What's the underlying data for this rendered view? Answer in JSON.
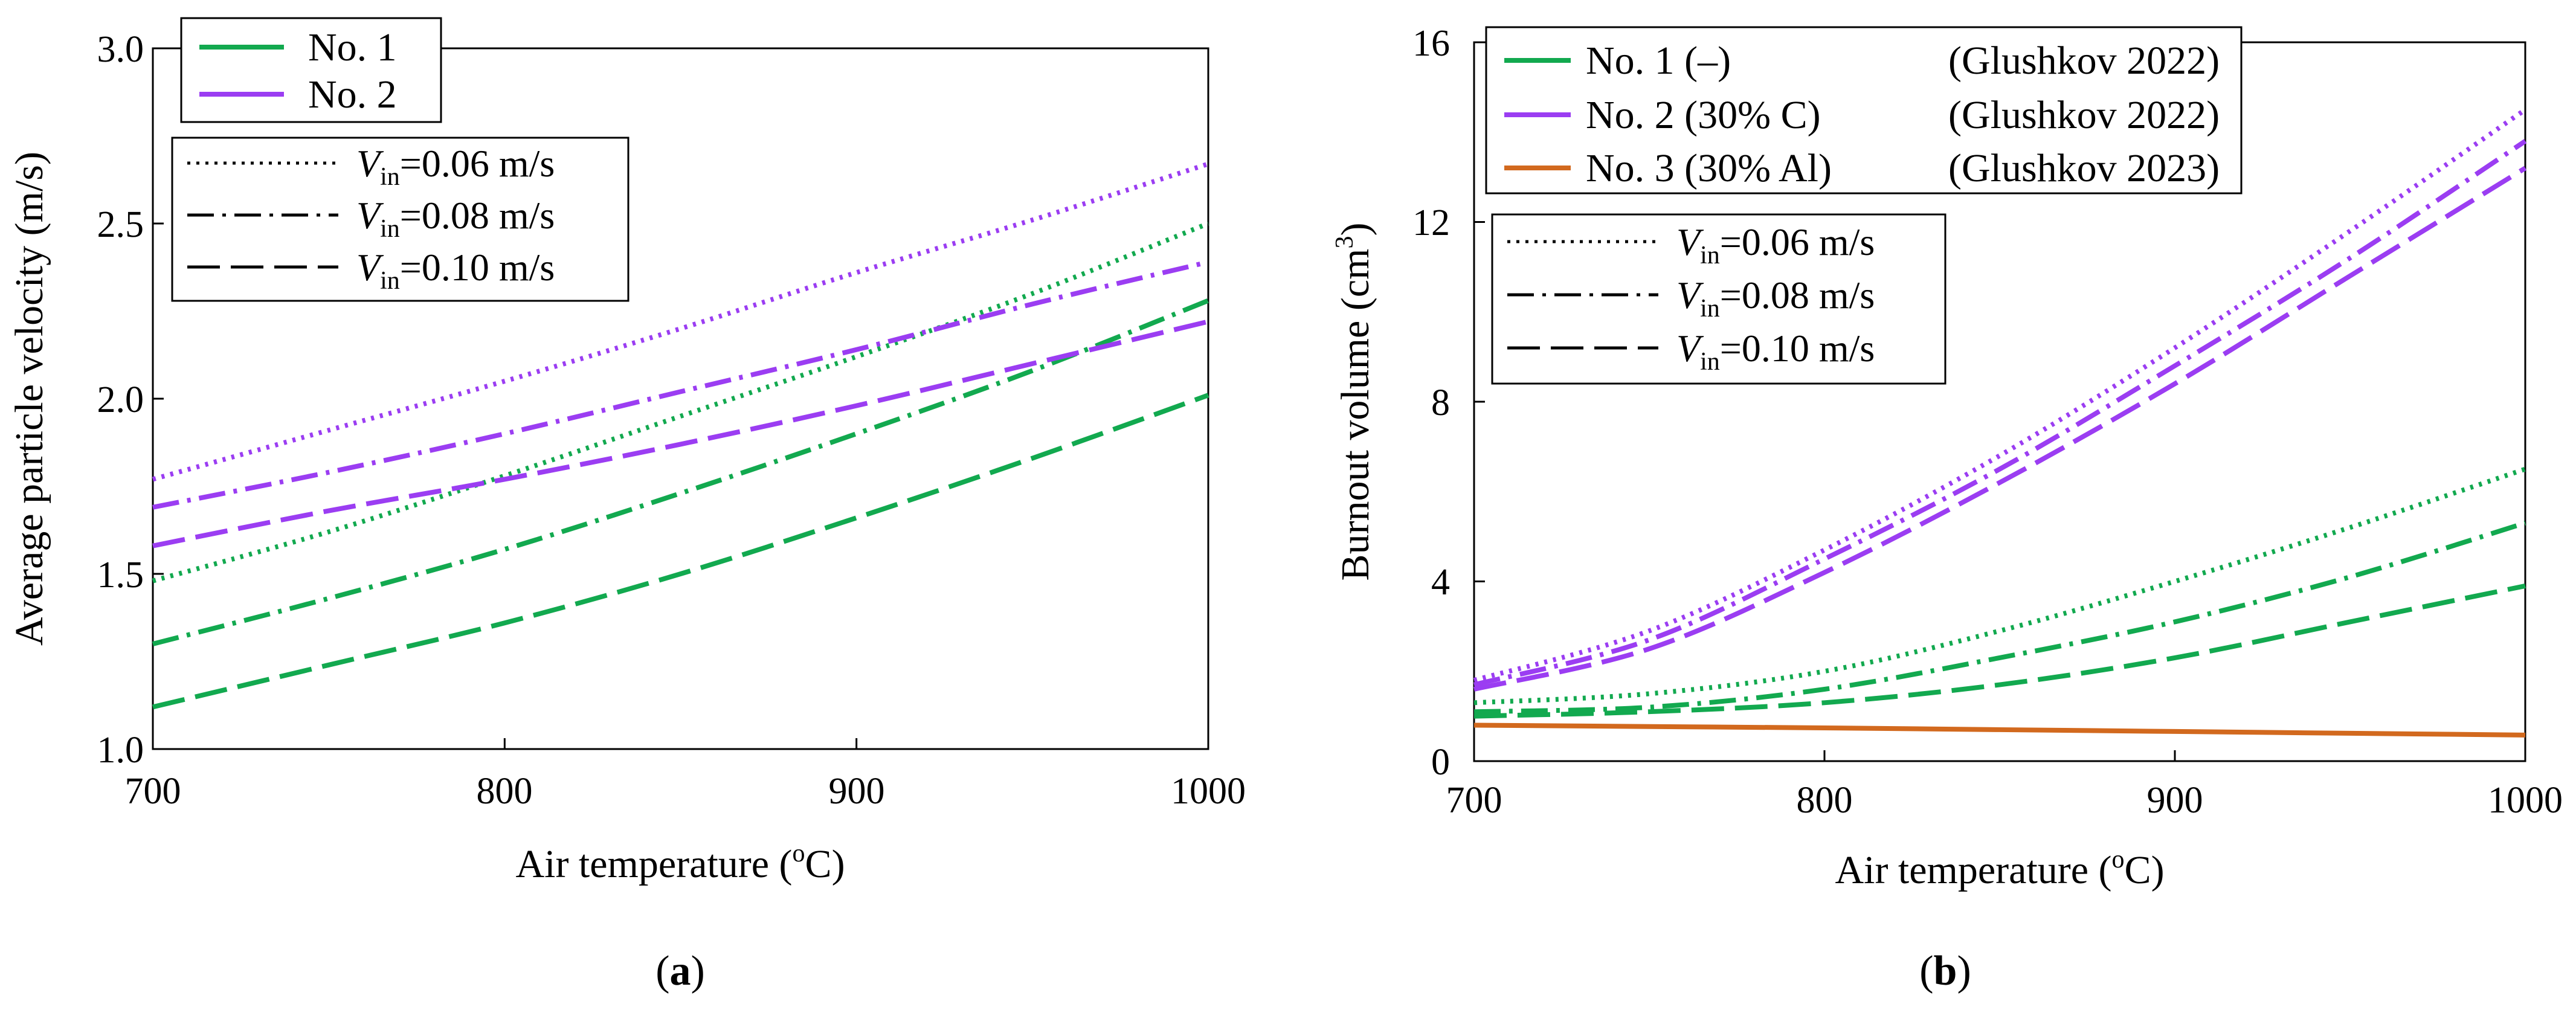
{
  "colors": {
    "green": "#12a94f",
    "purple": "#9b3df2",
    "orange": "#d2691e"
  },
  "chart_data": [
    {
      "type": "line",
      "panel_label": "a",
      "xlabel": "Air temperature (",
      "xlabel_sup": "o",
      "xlabel_end": "C)",
      "ylabel": "Average particle velocity (m/s)",
      "xlim": [
        700,
        1000
      ],
      "ylim": [
        1.0,
        3.0
      ],
      "xticks": [
        "700",
        "800",
        "900",
        "1000"
      ],
      "yticks": [
        "1.0",
        "1.5",
        "2.0",
        "2.5",
        "3.0"
      ],
      "x": [
        700,
        750,
        800,
        850,
        900,
        950,
        1000
      ],
      "fuel_legend": [
        {
          "label": "No. 1",
          "ref": "",
          "color": "green"
        },
        {
          "label": "No. 2",
          "ref": "",
          "color": "purple"
        }
      ],
      "style_legend": [
        {
          "label_pre": "V",
          "label_sub": "in",
          "label_post": "=0.06 m/s",
          "dash": "dot"
        },
        {
          "label_pre": "V",
          "label_sub": "in",
          "label_post": "=0.08 m/s",
          "dash": "dashdot"
        },
        {
          "label_pre": "V",
          "label_sub": "in",
          "label_post": "=0.10 m/s",
          "dash": "dash"
        }
      ],
      "series": [
        {
          "name": "No. 1, Vin=0.06 m/s",
          "color": "green",
          "dash": "dot",
          "values": [
            1.48,
            1.62,
            1.78,
            1.95,
            2.12,
            2.3,
            2.5
          ]
        },
        {
          "name": "No. 1, Vin=0.08 m/s",
          "color": "green",
          "dash": "dashdot",
          "values": [
            1.3,
            1.43,
            1.57,
            1.73,
            1.9,
            2.08,
            2.28
          ]
        },
        {
          "name": "No. 1, Vin=0.10 m/s",
          "color": "green",
          "dash": "dash",
          "values": [
            1.12,
            1.24,
            1.36,
            1.5,
            1.66,
            1.83,
            2.01
          ]
        },
        {
          "name": "No. 2, Vin=0.06 m/s",
          "color": "purple",
          "dash": "dot",
          "values": [
            1.77,
            1.91,
            2.05,
            2.2,
            2.36,
            2.51,
            2.67
          ]
        },
        {
          "name": "No. 2, Vin=0.08 m/s",
          "color": "purple",
          "dash": "dashdot",
          "values": [
            1.69,
            1.79,
            1.9,
            2.02,
            2.14,
            2.27,
            2.39
          ]
        },
        {
          "name": "No. 2, Vin=0.10 m/s",
          "color": "purple",
          "dash": "dash",
          "values": [
            1.58,
            1.68,
            1.77,
            1.87,
            1.98,
            2.1,
            2.22
          ]
        }
      ]
    },
    {
      "type": "line",
      "panel_label": "b",
      "xlabel": "Air temperature (",
      "xlabel_sup": "o",
      "xlabel_end": "C)",
      "ylabel": "Burnout volume (cm",
      "ylabel_sup": "3",
      "ylabel_end": ")",
      "xlim": [
        700,
        1000
      ],
      "ylim": [
        0,
        16
      ],
      "xticks": [
        "700",
        "800",
        "900",
        "1000"
      ],
      "yticks": [
        "0",
        "4",
        "8",
        "12",
        "16"
      ],
      "x": [
        700,
        750,
        800,
        850,
        900,
        950,
        1000
      ],
      "fuel_legend": [
        {
          "label": "No. 1 (–)",
          "ref": "(Glushkov 2022)",
          "color": "green"
        },
        {
          "label": "No. 2 (30% C)",
          "ref": "(Glushkov 2022)",
          "color": "purple"
        },
        {
          "label": "No. 3 (30% Al)",
          "ref": "(Glushkov 2023)",
          "color": "orange"
        }
      ],
      "style_legend": [
        {
          "label_pre": "V",
          "label_sub": "in",
          "label_post": "=0.06 m/s",
          "dash": "dot"
        },
        {
          "label_pre": "V",
          "label_sub": "in",
          "label_post": "=0.08 m/s",
          "dash": "dashdot"
        },
        {
          "label_pre": "V",
          "label_sub": "in",
          "label_post": "=0.10 m/s",
          "dash": "dash"
        }
      ],
      "series": [
        {
          "name": "No. 1, Vin=0.06 m/s",
          "color": "green",
          "dash": "dot",
          "values": [
            1.3,
            1.5,
            2.0,
            2.9,
            4.0,
            5.2,
            6.5
          ]
        },
        {
          "name": "No. 1, Vin=0.08 m/s",
          "color": "green",
          "dash": "dashdot",
          "values": [
            1.1,
            1.2,
            1.6,
            2.3,
            3.1,
            4.1,
            5.3
          ]
        },
        {
          "name": "No. 1, Vin=0.10 m/s",
          "color": "green",
          "dash": "dash",
          "values": [
            1.0,
            1.1,
            1.3,
            1.7,
            2.3,
            3.1,
            3.9
          ]
        },
        {
          "name": "No. 2, Vin=0.06 m/s",
          "color": "purple",
          "dash": "dot",
          "values": [
            1.8,
            2.9,
            4.7,
            6.8,
            9.2,
            11.8,
            14.5
          ]
        },
        {
          "name": "No. 2, Vin=0.08 m/s",
          "color": "purple",
          "dash": "dashdot",
          "values": [
            1.7,
            2.7,
            4.5,
            6.5,
            8.8,
            11.2,
            13.8
          ]
        },
        {
          "name": "No. 2, Vin=0.10 m/s",
          "color": "purple",
          "dash": "dash",
          "values": [
            1.6,
            2.5,
            4.2,
            6.2,
            8.4,
            10.8,
            13.2
          ]
        },
        {
          "name": "No. 3",
          "color": "orange",
          "dash": "solid",
          "values": [
            0.8,
            0.77,
            0.74,
            0.7,
            0.66,
            0.62,
            0.58
          ]
        }
      ]
    }
  ]
}
